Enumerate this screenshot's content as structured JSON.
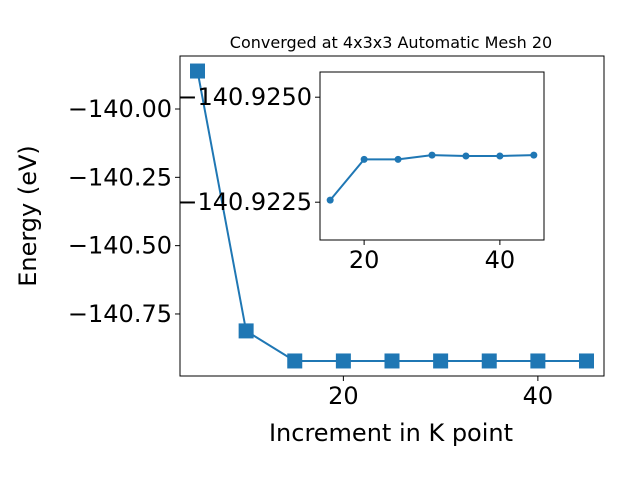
{
  "chart_data": [
    {
      "type": "line",
      "title": "Converged at 4x3x3 Automatic Mesh 20",
      "xlabel": "Increment in K point",
      "ylabel": "Energy (eV)",
      "x": [
        5,
        10,
        15,
        20,
        25,
        30,
        35,
        40,
        45
      ],
      "series": [
        {
          "color": "#1f77b4",
          "marker": "square",
          "values": [
            -139.861,
            -140.812,
            -140.922,
            -140.922,
            -140.922,
            -140.922,
            -140.922,
            -140.922,
            -140.922
          ]
        }
      ],
      "xlim": [
        3.2,
        46.8
      ],
      "xticks": [
        20,
        40
      ],
      "ylim": [
        -140.977,
        -139.806
      ],
      "yticks": [
        {
          "value": -140.75,
          "label": "−140.75"
        },
        {
          "value": -140.5,
          "label": "−140.50"
        },
        {
          "value": -140.25,
          "label": "−140.25"
        },
        {
          "value": -140.0,
          "label": "−140.00"
        }
      ]
    },
    {
      "type": "line",
      "x": [
        15,
        20,
        25,
        30,
        35,
        40,
        45
      ],
      "series": [
        {
          "color": "#1f77b4",
          "marker": "circle",
          "values": [
            -140.92255,
            -140.92352,
            -140.92352,
            -140.92362,
            -140.9236,
            -140.9236,
            -140.92362
          ]
        }
      ],
      "xlim": [
        13.5,
        46.5
      ],
      "xticks": [
        20,
        40
      ],
      "ylim": [
        -140.9216,
        -140.9256
      ],
      "yticks": [
        {
          "value": -140.9225,
          "label": "−140.9225"
        },
        {
          "value": -140.925,
          "label": "−140.9250"
        }
      ]
    }
  ]
}
